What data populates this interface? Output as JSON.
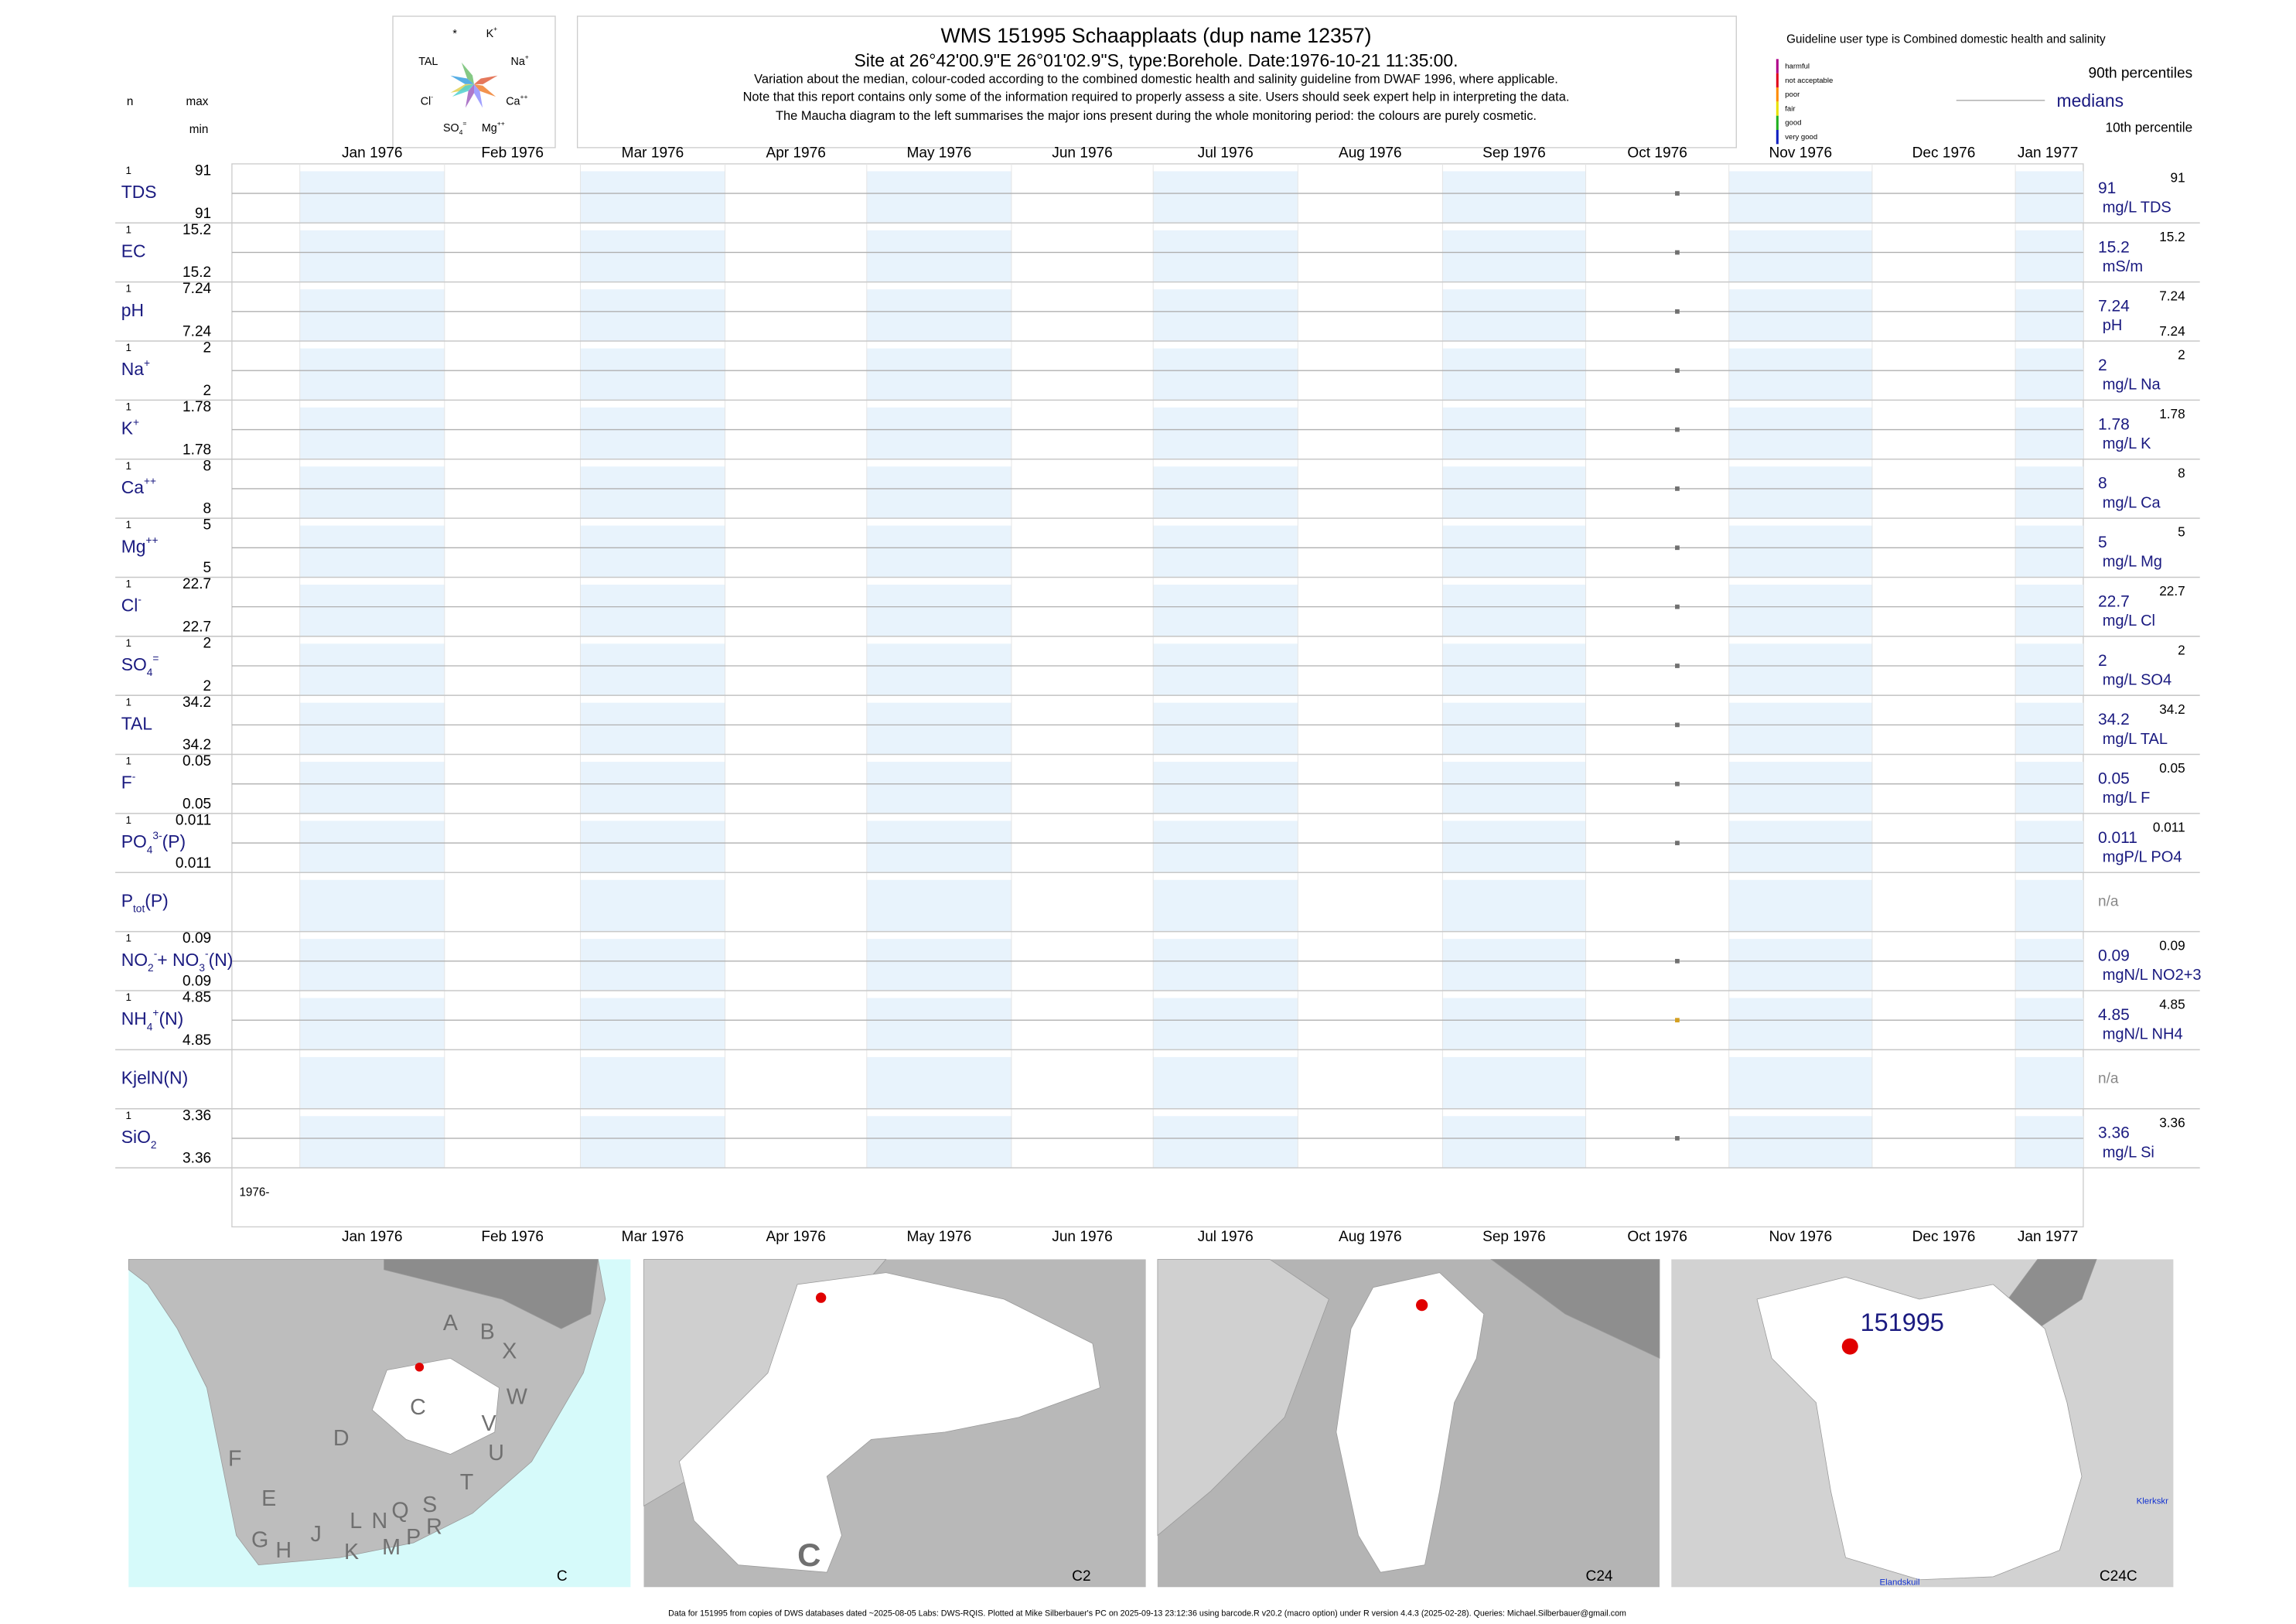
{
  "header": {
    "title": "WMS 151995  Schaapplaats (dup name 12357)",
    "subtitle": "Site at 26°42'00.9\"E 26°01'02.9\"S, type:Borehole. Date:1976-10-21 11:35:00.",
    "notes": [
      "Variation about the median,  colour-coded according to the combined domestic health and salinity guideline from DWAF 1996, where applicable.",
      "Note that this report contains only some of the information required to properly assess a site. Users should seek expert help in interpreting the data.",
      "The Maucha diagram to the left summarises the major ions present during the whole monitoring period: the colours are purely cosmetic."
    ]
  },
  "maucha": {
    "labels": [
      [
        {
          "text": "*",
          "pos": "base"
        }
      ],
      [
        {
          "text": "K",
          "pos": "base"
        },
        {
          "text": "+",
          "pos": "sup"
        }
      ],
      [
        {
          "text": "TAL",
          "pos": "base"
        }
      ],
      [
        {
          "text": "Na",
          "pos": "base"
        },
        {
          "text": "+",
          "pos": "sup"
        }
      ],
      [
        {
          "text": "Cl",
          "pos": "base"
        },
        {
          "text": "-",
          "pos": "sup"
        }
      ],
      [
        {
          "text": "Ca",
          "pos": "base"
        },
        {
          "text": "++",
          "pos": "sup"
        }
      ],
      [
        {
          "text": "SO",
          "pos": "base"
        },
        {
          "text": "4",
          "pos": "sub"
        },
        {
          "text": "=",
          "pos": "sup"
        }
      ],
      [
        {
          "text": "Mg",
          "pos": "base"
        },
        {
          "text": "++",
          "pos": "sup"
        }
      ]
    ]
  },
  "column_heads": {
    "n": "n",
    "max": "max",
    "min": "min"
  },
  "legend": {
    "guideline": "Guideline user type is Combined domestic health and salinity",
    "classes": [
      {
        "label": "harmful",
        "color": "#b0008a"
      },
      {
        "label": "not acceptable",
        "color": "#e0001a"
      },
      {
        "label": "poor",
        "color": "#ff8c00"
      },
      {
        "label": "fair",
        "color": "#e8e000"
      },
      {
        "label": "good",
        "color": "#20b020"
      },
      {
        "label": "very good",
        "color": "#1020c0"
      }
    ],
    "p90": "90th percentiles",
    "median": "medians",
    "p10": "10th percentile"
  },
  "months": [
    "Jan 1976",
    "Feb 1976",
    "Mar 1976",
    "Apr 1976",
    "May 1976",
    "Jun 1976",
    "Jul 1976",
    "Aug 1976",
    "Sep 1976",
    "Oct 1976",
    "Nov 1976",
    "Dec 1976",
    "Jan 1977"
  ],
  "year_label": "1976-",
  "rows": [
    {
      "name": [
        {
          "text": "TDS",
          "pos": "base"
        }
      ],
      "n": 1,
      "max": 91,
      "min": 91,
      "median": 91,
      "unit": "mg/L TDS",
      "p90": 91,
      "point_color": "#707070"
    },
    {
      "name": [
        {
          "text": "EC",
          "pos": "base"
        }
      ],
      "n": 1,
      "max": 15.2,
      "min": 15.2,
      "median": 15.2,
      "unit": "mS/m",
      "p90": 15.2,
      "point_color": "#707070"
    },
    {
      "name": [
        {
          "text": "pH",
          "pos": "base"
        }
      ],
      "n": 1,
      "max": 7.24,
      "min": 7.24,
      "median": 7.24,
      "unit": "pH",
      "p90": 7.24,
      "p10": 7.24,
      "point_color": "#707070"
    },
    {
      "name": [
        {
          "text": "Na",
          "pos": "base"
        },
        {
          "text": "+",
          "pos": "sup"
        }
      ],
      "n": 1,
      "max": 2,
      "min": 2,
      "median": 2,
      "unit": "mg/L Na",
      "p90": 2,
      "point_color": "#707070"
    },
    {
      "name": [
        {
          "text": "K",
          "pos": "base"
        },
        {
          "text": "+",
          "pos": "sup"
        }
      ],
      "n": 1,
      "max": 1.78,
      "min": 1.78,
      "median": 1.78,
      "unit": "mg/L K",
      "p90": 1.78,
      "point_color": "#707070"
    },
    {
      "name": [
        {
          "text": "Ca",
          "pos": "base"
        },
        {
          "text": "++",
          "pos": "sup"
        }
      ],
      "n": 1,
      "max": 8,
      "min": 8,
      "median": 8,
      "unit": "mg/L Ca",
      "p90": 8,
      "point_color": "#707070"
    },
    {
      "name": [
        {
          "text": "Mg",
          "pos": "base"
        },
        {
          "text": "++",
          "pos": "sup"
        }
      ],
      "n": 1,
      "max": 5,
      "min": 5,
      "median": 5,
      "unit": "mg/L Mg",
      "p90": 5,
      "point_color": "#707070"
    },
    {
      "name": [
        {
          "text": "Cl",
          "pos": "base"
        },
        {
          "text": "-",
          "pos": "sup"
        }
      ],
      "n": 1,
      "max": 22.7,
      "min": 22.7,
      "median": 22.7,
      "unit": "mg/L Cl",
      "p90": 22.7,
      "point_color": "#707070"
    },
    {
      "name": [
        {
          "text": "SO",
          "pos": "base"
        },
        {
          "text": "4",
          "pos": "sub"
        },
        {
          "text": "=",
          "pos": "sup"
        }
      ],
      "n": 1,
      "max": 2,
      "min": 2,
      "median": 2,
      "unit": "mg/L SO4",
      "p90": 2,
      "point_color": "#707070"
    },
    {
      "name": [
        {
          "text": "TAL",
          "pos": "base"
        }
      ],
      "n": 1,
      "max": 34.2,
      "min": 34.2,
      "median": 34.2,
      "unit": "mg/L TAL",
      "p90": 34.2,
      "point_color": "#707070"
    },
    {
      "name": [
        {
          "text": "F",
          "pos": "base"
        },
        {
          "text": "-",
          "pos": "sup"
        }
      ],
      "n": 1,
      "max": 0.05,
      "min": 0.05,
      "median": 0.05,
      "unit": "mg/L F",
      "p90": 0.05,
      "point_color": "#707070"
    },
    {
      "name": [
        {
          "text": "PO",
          "pos": "base"
        },
        {
          "text": "4",
          "pos": "sub"
        },
        {
          "text": "3-",
          "pos": "sup"
        },
        {
          "text": "(P)",
          "pos": "base"
        }
      ],
      "n": 1,
      "max": 0.011,
      "min": 0.011,
      "median": 0.011,
      "unit": "mgP/L PO4",
      "p90": 0.011,
      "point_color": "#707070"
    },
    {
      "name": [
        {
          "text": "P",
          "pos": "base"
        },
        {
          "text": "tot",
          "pos": "sub"
        },
        {
          "text": "(P)",
          "pos": "base"
        }
      ],
      "na": "n/a"
    },
    {
      "name": [
        {
          "text": "NO",
          "pos": "base"
        },
        {
          "text": "2",
          "pos": "sub"
        },
        {
          "text": "-",
          "pos": "sup"
        },
        {
          "text": "+ NO",
          "pos": "base"
        },
        {
          "text": "3",
          "pos": "sub"
        },
        {
          "text": "-",
          "pos": "sup"
        },
        {
          "text": "(N)",
          "pos": "base"
        }
      ],
      "n": 1,
      "max": 0.09,
      "min": 0.09,
      "median": 0.09,
      "unit": "mgN/L NO2+3",
      "p90": 0.09,
      "point_color": "#707070"
    },
    {
      "name": [
        {
          "text": "NH",
          "pos": "base"
        },
        {
          "text": "4",
          "pos": "sub"
        },
        {
          "text": "+",
          "pos": "sup"
        },
        {
          "text": "(N)",
          "pos": "base"
        }
      ],
      "n": 1,
      "max": 4.85,
      "min": 4.85,
      "median": 4.85,
      "unit": "mgN/L NH4",
      "p90": 4.85,
      "point_color": "#d4a020"
    },
    {
      "name": [
        {
          "text": "KjelN(N)",
          "pos": "base"
        }
      ],
      "na": "n/a"
    },
    {
      "name": [
        {
          "text": "SiO",
          "pos": "base"
        },
        {
          "text": "2",
          "pos": "sub"
        }
      ],
      "n": 1,
      "max": 3.36,
      "min": 3.36,
      "median": 3.36,
      "unit": "mg/L Si",
      "p90": 3.36,
      "point_color": "#707070"
    }
  ],
  "maps": [
    {
      "label": "C",
      "regions": [
        "A",
        "B",
        "X",
        "W",
        "C",
        "D",
        "V",
        "U",
        "F",
        "E",
        "T",
        "G",
        "H",
        "J",
        "K",
        "L",
        "N",
        "Q",
        "M",
        "P",
        "S",
        "R"
      ]
    },
    {
      "label": "C2",
      "basin": "C"
    },
    {
      "label": "C24"
    },
    {
      "label": "C24C",
      "site": "151995",
      "places": [
        "Klerkskr",
        "Elandskuil"
      ]
    }
  ],
  "footer": "Data for 151995 from copies of DWS databases dated ~2025-08-05 Labs: DWS-RQIS. Plotted at Mike Silberbauer's PC on 2025-09-13 23:12:36 using barcode.R v20.2 (macro option) under R version 4.4.3 (2025-02-28). Queries: Michael.Silberbauer@gmail.com"
}
